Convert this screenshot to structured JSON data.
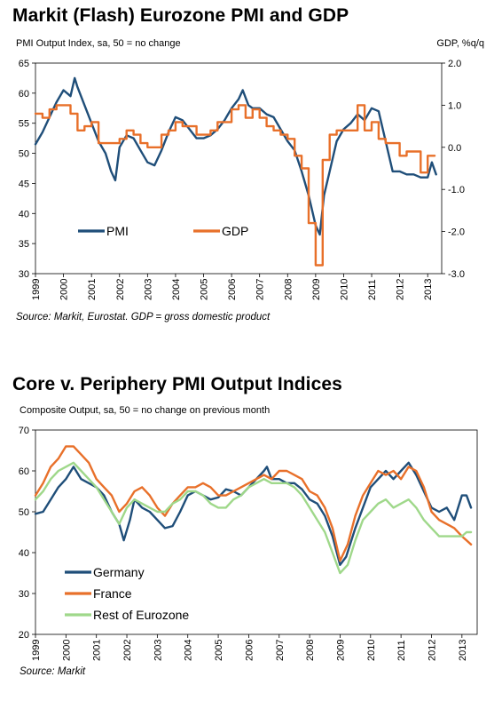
{
  "chart1": {
    "title": "Markit (Flash) Eurozone PMI and GDP",
    "ylabel_left": "PMI Output Index, sa, 50 = no change",
    "ylabel_right": "GDP, %q/q",
    "source": "Source: Markit, Eurostat. GDP = gross domestic product"
  },
  "chart2": {
    "title": "Core v. Periphery PMI Output Indices",
    "ylabel": "Composite Output, sa, 50 = no change on previous month",
    "source": "Source: Markit"
  },
  "chart_data": [
    {
      "type": "line",
      "title": "Markit (Flash) Eurozone PMI and GDP",
      "ylabel": "PMI Output Index, sa, 50 = no change",
      "y2label": "GDP, %q/q",
      "ylim": [
        30,
        65
      ],
      "y2lim": [
        -3.0,
        2.0
      ],
      "yticks": [
        "65",
        "60",
        "55",
        "50",
        "45",
        "40",
        "35",
        "30"
      ],
      "y2ticks": [
        "2.0",
        "1.0",
        "0.0",
        "-1.0",
        "-2.0",
        "-3.0"
      ],
      "xlim": [
        1999,
        2013.5
      ],
      "xticks": [
        "1999",
        "2000",
        "2001",
        "2002",
        "2003",
        "2004",
        "2005",
        "2006",
        "2007",
        "2008",
        "2009",
        "2010",
        "2011",
        "2012",
        "2013"
      ],
      "legend_position": "bottom-center",
      "series": [
        {
          "name": "PMI",
          "axis": "left",
          "color": "#1f4e79",
          "x": [
            1999.0,
            1999.25,
            1999.5,
            1999.75,
            2000.0,
            2000.25,
            2000.4,
            2000.5,
            2000.75,
            2001.0,
            2001.25,
            2001.5,
            2001.7,
            2001.85,
            2002.0,
            2002.25,
            2002.5,
            2002.75,
            2003.0,
            2003.25,
            2003.5,
            2003.75,
            2004.0,
            2004.25,
            2004.5,
            2004.75,
            2005.0,
            2005.25,
            2005.5,
            2005.75,
            2006.0,
            2006.25,
            2006.4,
            2006.6,
            2006.75,
            2007.0,
            2007.25,
            2007.5,
            2007.75,
            2008.0,
            2008.25,
            2008.5,
            2008.75,
            2009.0,
            2009.15,
            2009.3,
            2009.5,
            2009.75,
            2010.0,
            2010.25,
            2010.5,
            2010.75,
            2011.0,
            2011.25,
            2011.5,
            2011.75,
            2012.0,
            2012.25,
            2012.5,
            2012.75,
            2013.0,
            2013.15,
            2013.3
          ],
          "y": [
            51.5,
            53.5,
            56,
            58.5,
            60.5,
            59.5,
            62.5,
            61,
            58,
            55,
            52,
            50,
            47,
            45.5,
            51,
            53,
            52.5,
            50.5,
            48.5,
            48,
            50.5,
            53.5,
            56,
            55.5,
            54,
            52.5,
            52.5,
            53,
            54,
            55.5,
            57.5,
            59,
            60.5,
            58,
            57.5,
            57.5,
            56.5,
            56,
            54,
            52,
            50.5,
            47,
            43,
            38,
            36.5,
            43,
            47,
            52,
            54,
            55,
            56.5,
            55.5,
            57.5,
            57,
            52,
            47,
            47,
            46.5,
            46.5,
            46,
            46,
            48.5,
            46.5
          ]
        },
        {
          "name": "GDP",
          "axis": "right",
          "color": "#e8702a",
          "x": [
            1999.0,
            1999.25,
            1999.5,
            1999.75,
            2000.0,
            2000.25,
            2000.5,
            2000.75,
            2001.0,
            2001.25,
            2001.5,
            2001.75,
            2002.0,
            2002.25,
            2002.5,
            2002.75,
            2003.0,
            2003.25,
            2003.5,
            2003.75,
            2004.0,
            2004.25,
            2004.5,
            2004.75,
            2005.0,
            2005.25,
            2005.5,
            2005.75,
            2006.0,
            2006.25,
            2006.5,
            2006.75,
            2007.0,
            2007.25,
            2007.5,
            2007.75,
            2008.0,
            2008.25,
            2008.5,
            2008.75,
            2009.0,
            2009.25,
            2009.5,
            2009.75,
            2010.0,
            2010.25,
            2010.5,
            2010.75,
            2011.0,
            2011.25,
            2011.5,
            2011.75,
            2012.0,
            2012.25,
            2012.5,
            2012.75,
            2013.0
          ],
          "y": [
            0.8,
            0.7,
            0.9,
            1.0,
            1.0,
            0.8,
            0.4,
            0.5,
            0.6,
            0.1,
            0.1,
            0.1,
            0.2,
            0.4,
            0.3,
            0.1,
            0.0,
            0.0,
            0.3,
            0.4,
            0.6,
            0.5,
            0.5,
            0.3,
            0.3,
            0.4,
            0.6,
            0.6,
            0.9,
            1.0,
            0.7,
            0.9,
            0.7,
            0.5,
            0.4,
            0.3,
            0.2,
            -0.2,
            -0.5,
            -1.8,
            -2.8,
            -0.3,
            0.3,
            0.4,
            0.4,
            0.4,
            1.0,
            0.4,
            0.6,
            0.2,
            0.1,
            0.1,
            -0.2,
            -0.1,
            -0.1,
            -0.6,
            -0.2
          ]
        }
      ]
    },
    {
      "type": "line",
      "title": "Core v. Periphery PMI Output Indices",
      "ylabel": "Composite Output, sa, 50 = no change on previous month",
      "ylim": [
        20,
        70
      ],
      "yticks": [
        "70",
        "60",
        "50",
        "40",
        "30",
        "20"
      ],
      "xlim": [
        1999,
        2013.5
      ],
      "xticks": [
        "1999",
        "2000",
        "2001",
        "2002",
        "2003",
        "2004",
        "2005",
        "2006",
        "2007",
        "2008",
        "2009",
        "2010",
        "2011",
        "2012",
        "2013"
      ],
      "legend_position": "bottom-left",
      "series": [
        {
          "name": "Germany",
          "color": "#1f4e79",
          "x": [
            1999.0,
            1999.25,
            1999.5,
            1999.75,
            2000.0,
            2000.25,
            2000.5,
            2000.75,
            2001.0,
            2001.25,
            2001.5,
            2001.75,
            2001.9,
            2002.1,
            2002.25,
            2002.5,
            2002.75,
            2003.0,
            2003.25,
            2003.5,
            2003.75,
            2004.0,
            2004.25,
            2004.5,
            2004.75,
            2005.0,
            2005.25,
            2005.5,
            2005.75,
            2006.0,
            2006.25,
            2006.5,
            2006.6,
            2006.75,
            2007.0,
            2007.25,
            2007.5,
            2007.75,
            2008.0,
            2008.25,
            2008.5,
            2008.75,
            2009.0,
            2009.2,
            2009.5,
            2009.75,
            2010.0,
            2010.25,
            2010.5,
            2010.75,
            2011.0,
            2011.25,
            2011.5,
            2011.75,
            2012.0,
            2012.25,
            2012.5,
            2012.75,
            2013.0,
            2013.15,
            2013.3
          ],
          "y": [
            49.5,
            50,
            53,
            56,
            58,
            61,
            58,
            57,
            56,
            54,
            50,
            47,
            43,
            48,
            53,
            51,
            50,
            48,
            46,
            46.5,
            50,
            54,
            55,
            54,
            53,
            53.5,
            55.5,
            55,
            54,
            56,
            58,
            60,
            61,
            58,
            58,
            57,
            57,
            55.5,
            53,
            52,
            49,
            44,
            37,
            39,
            46,
            51,
            56,
            58,
            60,
            58,
            60,
            62,
            59,
            55,
            51,
            50,
            51,
            48,
            54,
            54,
            51
          ]
        },
        {
          "name": "France",
          "color": "#e8702a",
          "x": [
            1999.0,
            1999.25,
            1999.5,
            1999.75,
            2000.0,
            2000.25,
            2000.5,
            2000.75,
            2001.0,
            2001.25,
            2001.5,
            2001.75,
            2002.0,
            2002.25,
            2002.5,
            2002.75,
            2003.0,
            2003.25,
            2003.5,
            2003.75,
            2004.0,
            2004.25,
            2004.5,
            2004.75,
            2005.0,
            2005.25,
            2005.5,
            2005.75,
            2006.0,
            2006.25,
            2006.5,
            2006.75,
            2007.0,
            2007.25,
            2007.5,
            2007.75,
            2008.0,
            2008.25,
            2008.5,
            2008.75,
            2009.0,
            2009.25,
            2009.5,
            2009.75,
            2010.0,
            2010.25,
            2010.5,
            2010.75,
            2011.0,
            2011.25,
            2011.5,
            2011.75,
            2012.0,
            2012.25,
            2012.5,
            2012.75,
            2013.0,
            2013.15,
            2013.3
          ],
          "y": [
            54,
            57,
            61,
            63,
            66,
            66,
            64,
            62,
            58,
            56,
            54,
            50,
            52,
            55,
            56,
            54,
            51,
            49,
            52,
            54,
            56,
            56,
            57,
            56,
            54,
            54,
            55,
            56,
            57,
            58,
            59,
            58,
            60,
            60,
            59,
            58,
            55,
            54,
            51,
            46,
            38,
            42,
            49,
            54,
            57,
            60,
            59,
            60,
            58,
            61,
            60,
            56,
            50,
            48,
            47,
            46,
            44,
            43,
            42
          ]
        },
        {
          "name": "Rest of Eurozone",
          "color": "#9fd88a",
          "x": [
            1999.0,
            1999.25,
            1999.5,
            1999.75,
            2000.0,
            2000.25,
            2000.5,
            2000.75,
            2001.0,
            2001.25,
            2001.5,
            2001.75,
            2002.0,
            2002.25,
            2002.5,
            2002.75,
            2003.0,
            2003.25,
            2003.5,
            2003.75,
            2004.0,
            2004.25,
            2004.5,
            2004.75,
            2005.0,
            2005.25,
            2005.5,
            2005.75,
            2006.0,
            2006.25,
            2006.5,
            2006.75,
            2007.0,
            2007.25,
            2007.5,
            2007.75,
            2008.0,
            2008.25,
            2008.5,
            2008.75,
            2009.0,
            2009.25,
            2009.5,
            2009.75,
            2010.0,
            2010.25,
            2010.5,
            2010.75,
            2011.0,
            2011.25,
            2011.5,
            2011.75,
            2012.0,
            2012.25,
            2012.5,
            2012.75,
            2013.0,
            2013.15,
            2013.3
          ],
          "y": [
            53,
            55,
            58,
            60,
            61,
            62,
            60,
            58,
            56,
            53,
            50,
            47,
            51,
            53,
            52,
            51,
            50,
            50,
            52,
            53,
            55,
            55,
            54,
            52,
            51,
            51,
            53,
            54,
            56,
            57,
            58,
            57,
            57,
            57,
            56,
            54,
            51,
            48,
            45,
            40,
            35,
            37,
            43,
            48,
            50,
            52,
            53,
            51,
            52,
            53,
            51,
            48,
            46,
            44,
            44,
            44,
            44,
            45,
            45
          ]
        }
      ]
    }
  ]
}
